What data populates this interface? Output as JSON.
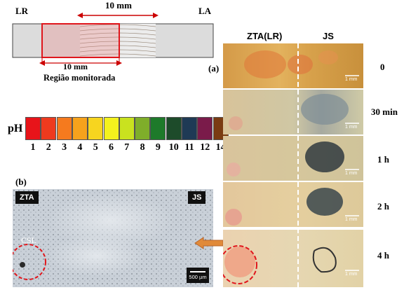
{
  "schematic": {
    "left_label": "LR",
    "right_label": "LA",
    "top_dimension": "10 mm",
    "bottom_dimension": "10 mm",
    "monitored_region": "Região monitorada"
  },
  "panel_a": {
    "letter": "(a)",
    "column_left": "ZTA(LR)",
    "column_right": "JS",
    "times": [
      "0",
      "30 min",
      "1 h",
      "2 h",
      "4 h"
    ],
    "scale_bar": "1 mm"
  },
  "ph_scale": {
    "label": "pH",
    "values": [
      "1",
      "2",
      "3",
      "4",
      "5",
      "6",
      "7",
      "8",
      "9",
      "10",
      "11",
      "12",
      "14"
    ],
    "colors": [
      "#e8141a",
      "#ee3a1e",
      "#f57a1e",
      "#f6a21c",
      "#f7d51f",
      "#f4f21d",
      "#c9e21f",
      "#7fae2a",
      "#1e7a2a",
      "#1d4b2a",
      "#1f3a55",
      "#7a1b4a",
      "#7a3b12"
    ]
  },
  "panel_b": {
    "letter": "(b)",
    "tag_left": "ZTA",
    "tag_right": "JS",
    "region_label": "CSL",
    "scale_bar": "500 µm"
  }
}
